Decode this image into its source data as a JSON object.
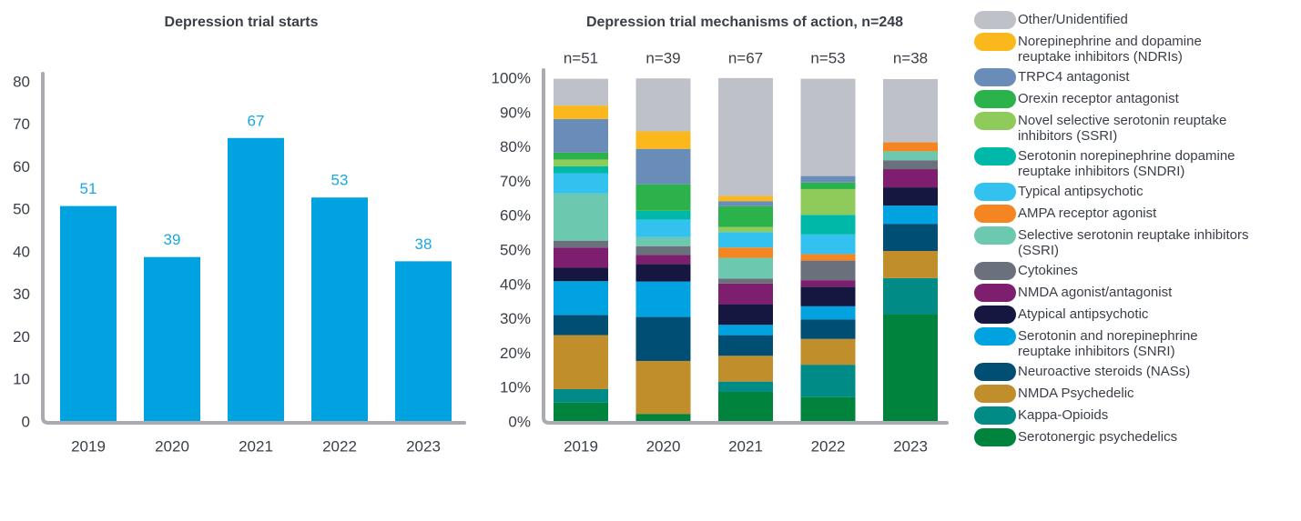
{
  "chart_data": [
    {
      "type": "bar",
      "title": "Depression trial starts",
      "categories": [
        "2019",
        "2020",
        "2021",
        "2022",
        "2023"
      ],
      "values": [
        51,
        39,
        67,
        53,
        38
      ],
      "color": "#00a3e0",
      "label_color": "#1aa7e0",
      "ylim": [
        0,
        80
      ],
      "yticks": [
        0,
        10,
        20,
        30,
        40,
        50,
        60,
        70,
        80
      ]
    },
    {
      "type": "stacked_bar",
      "title": "Depression trial mechanisms of action, n=248",
      "categories": [
        "2019",
        "2020",
        "2021",
        "2022",
        "2023"
      ],
      "annotations": [
        "n=51",
        "n=39",
        "n=67",
        "n=53",
        "n=38"
      ],
      "ylim": [
        0,
        100
      ],
      "yticks": [
        {
          "value": 0,
          "label": "0%"
        },
        {
          "value": 10,
          "label": "10%"
        },
        {
          "value": 20,
          "label": "20%"
        },
        {
          "value": 30,
          "label": "30%"
        },
        {
          "value": 40,
          "label": "40%"
        },
        {
          "value": 50,
          "label": "50%"
        },
        {
          "value": 60,
          "label": "60%"
        },
        {
          "value": 70,
          "label": "70%"
        },
        {
          "value": 80,
          "label": "80%"
        },
        {
          "value": 90,
          "label": "90%"
        },
        {
          "value": 100,
          "label": "100%"
        }
      ],
      "series": [
        {
          "name": "Serotonergic psychedelics",
          "color": "#00843d",
          "values": [
            5.9,
            2.6,
            9.0,
            7.5,
            31.6
          ]
        },
        {
          "name": "Kappa-Opioids",
          "color": "#008b86",
          "values": [
            3.9,
            0,
            3.0,
            9.4,
            10.5
          ]
        },
        {
          "name": "NMDA Psychedelic",
          "color": "#c08e2b",
          "values": [
            15.7,
            15.4,
            7.5,
            7.5,
            7.9
          ]
        },
        {
          "name": "Neuroactive steroids (NASs)",
          "color": "#004e73",
          "values": [
            5.9,
            12.8,
            6.0,
            5.7,
            7.9
          ]
        },
        {
          "name": "Serotonin and norepinephrine reuptake inhibitors (SNRI)",
          "color": "#00a3e0",
          "values": [
            9.8,
            10.3,
            3.0,
            3.8,
            5.3
          ]
        },
        {
          "name": "Atypical antipsychotic",
          "color": "#151740",
          "values": [
            3.9,
            5.1,
            6.0,
            5.7,
            5.3
          ]
        },
        {
          "name": "NMDA agonist/antagonist",
          "color": "#7d1f6e",
          "values": [
            5.9,
            2.6,
            6.0,
            1.9,
            5.3
          ]
        },
        {
          "name": "Cytokines",
          "color": "#6a717d",
          "values": [
            2.0,
            2.6,
            1.5,
            5.7,
            2.6
          ]
        },
        {
          "name": "Selective serotonin reuptake inhibitors (SSRI)",
          "color": "#6cc9b0",
          "values": [
            13.7,
            2.6,
            6.0,
            0,
            2.6
          ]
        },
        {
          "name": "AMPA receptor agonist",
          "color": "#f58520",
          "values": [
            0,
            0,
            3.0,
            1.9,
            2.6
          ]
        },
        {
          "name": "Typical antipsychotic",
          "color": "#33c2ef",
          "values": [
            5.9,
            5.1,
            4.5,
            5.7,
            0
          ]
        },
        {
          "name": "Serotonin norepinephrine dopamine reuptake inhibitors (SNDRI)",
          "color": "#00b8a8",
          "values": [
            2.0,
            2.6,
            0,
            5.7,
            0
          ]
        },
        {
          "name": "Novel selective serotonin reuptake inhibitors (SSRI)",
          "color": "#8fcb5a",
          "values": [
            2.0,
            0,
            1.5,
            7.5,
            0
          ]
        },
        {
          "name": "Orexin receptor antagonist",
          "color": "#2cb24a",
          "values": [
            2.0,
            7.7,
            6.0,
            1.9,
            0
          ]
        },
        {
          "name": "TRPC4 antagonist",
          "color": "#6a8cb8",
          "values": [
            9.8,
            10.3,
            1.5,
            1.9,
            0
          ]
        },
        {
          "name": "Norepinephrine and dopamine reuptake inhibitors (NDRIs)",
          "color": "#fbb81c",
          "values": [
            3.9,
            5.1,
            1.5,
            0,
            0
          ]
        },
        {
          "name": "Other/Unidentified",
          "color": "#bfc1c8",
          "values": [
            7.8,
            15.4,
            34.3,
            28.3,
            18.4
          ]
        }
      ]
    }
  ]
}
